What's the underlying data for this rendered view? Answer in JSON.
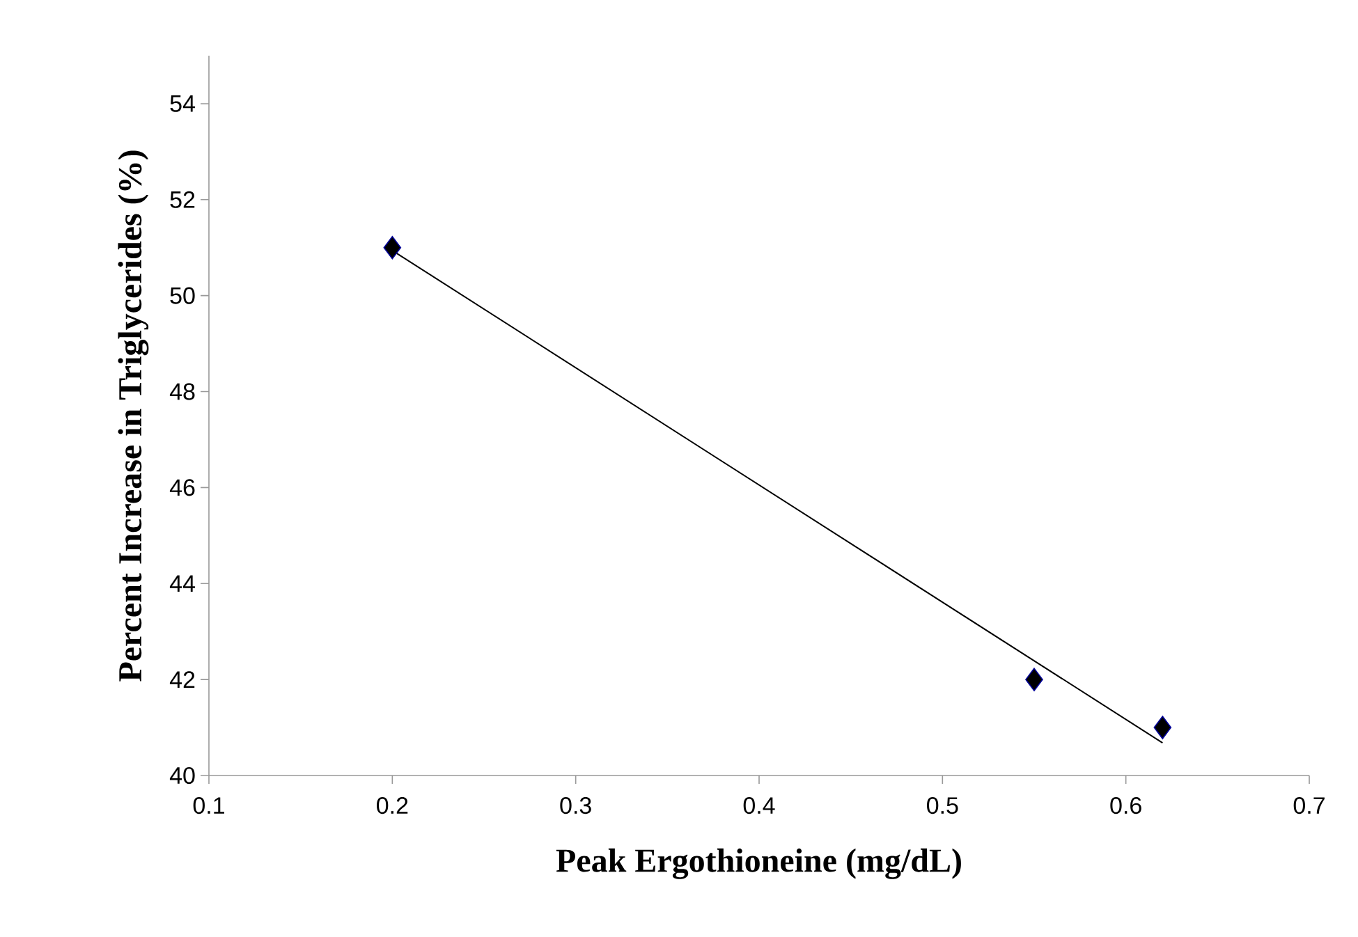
{
  "chart_data": {
    "type": "scatter",
    "xlabel": "Peak Ergothioneine (mg/dL)",
    "ylabel": "Percent Increase in Triglycerides (%)",
    "xlim": [
      0.1,
      0.7
    ],
    "ylim": [
      40,
      55
    ],
    "xticks": [
      0.1,
      0.2,
      0.3,
      0.4,
      0.5,
      0.6,
      0.7
    ],
    "yticks": [
      40,
      42,
      44,
      46,
      48,
      50,
      52,
      54
    ],
    "marker": "diamond",
    "series": [
      {
        "color": "#000000",
        "x": [
          0.2,
          0.55,
          0.62
        ],
        "values": [
          51,
          42,
          41
        ]
      },
      {
        "type": "line",
        "color": "#000000",
        "marker": "none",
        "x": [
          0.2,
          0.62
        ],
        "values": [
          50.94,
          40.68
        ]
      }
    ]
  }
}
